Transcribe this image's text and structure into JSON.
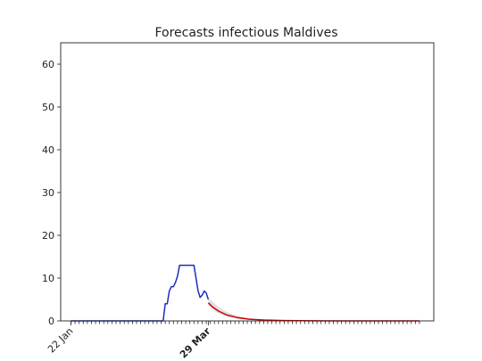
{
  "chart_data": {
    "type": "line",
    "title": "Forecasts infectious Maldives",
    "xlabel": "",
    "ylabel": "",
    "ylim": [
      0,
      65
    ],
    "yticks": [
      0,
      10,
      20,
      30,
      40,
      50,
      60
    ],
    "x_range": [
      "2020-01-17",
      "2020-07-17"
    ],
    "xtick_labels": [
      {
        "date": "2020-01-22",
        "label": "22 Jan",
        "bold": false
      },
      {
        "date": "2020-03-29",
        "label": "29 Mar",
        "bold": true
      }
    ],
    "minor_ticks": {
      "start": "2020-01-22",
      "end": "2020-07-10",
      "every_days": 2
    },
    "grid": false,
    "legend": "none",
    "colors": {
      "observed": "#1c2dc0",
      "forecast": "#d40000",
      "band": "#d9d9d9"
    },
    "series": [
      {
        "role": "observed",
        "points": [
          [
            "2020-01-22",
            0
          ],
          [
            "2020-03-07",
            0
          ],
          [
            "2020-03-08",
            4
          ],
          [
            "2020-03-09",
            4
          ],
          [
            "2020-03-10",
            7
          ],
          [
            "2020-03-11",
            8
          ],
          [
            "2020-03-12",
            8
          ],
          [
            "2020-03-13",
            9
          ],
          [
            "2020-03-14",
            10.5
          ],
          [
            "2020-03-15",
            13
          ],
          [
            "2020-03-16",
            13
          ],
          [
            "2020-03-17",
            13
          ],
          [
            "2020-03-18",
            13
          ],
          [
            "2020-03-19",
            13
          ],
          [
            "2020-03-20",
            13
          ],
          [
            "2020-03-21",
            13
          ],
          [
            "2020-03-22",
            13
          ],
          [
            "2020-03-23",
            10
          ],
          [
            "2020-03-24",
            7
          ],
          [
            "2020-03-25",
            5.5
          ],
          [
            "2020-03-26",
            6
          ],
          [
            "2020-03-27",
            7
          ],
          [
            "2020-03-28",
            6.5
          ],
          [
            "2020-03-29",
            5
          ]
        ]
      },
      {
        "role": "forecast",
        "points": [
          [
            "2020-03-29",
            4.2
          ],
          [
            "2020-03-31",
            3.3
          ],
          [
            "2020-04-03",
            2.3
          ],
          [
            "2020-04-07",
            1.4
          ],
          [
            "2020-04-12",
            0.8
          ],
          [
            "2020-04-18",
            0.4
          ],
          [
            "2020-04-25",
            0.2
          ],
          [
            "2020-05-05",
            0.08
          ],
          [
            "2020-05-20",
            0.02
          ],
          [
            "2020-06-10",
            0.0
          ],
          [
            "2020-07-10",
            0.0
          ]
        ]
      }
    ],
    "band": {
      "upper": [
        [
          "2020-03-29",
          5.2
        ],
        [
          "2020-03-31",
          4.6
        ],
        [
          "2020-04-03",
          3.3
        ],
        [
          "2020-04-07",
          2.1
        ],
        [
          "2020-04-12",
          1.2
        ],
        [
          "2020-04-18",
          0.6
        ],
        [
          "2020-04-25",
          0.3
        ],
        [
          "2020-05-05",
          0.1
        ],
        [
          "2020-05-20",
          0.03
        ],
        [
          "2020-06-10",
          0.0
        ],
        [
          "2020-07-10",
          0.0
        ]
      ],
      "lower": [
        [
          "2020-03-29",
          3.6
        ],
        [
          "2020-03-31",
          2.6
        ],
        [
          "2020-04-03",
          1.7
        ],
        [
          "2020-04-07",
          1.0
        ],
        [
          "2020-04-12",
          0.5
        ],
        [
          "2020-04-18",
          0.25
        ],
        [
          "2020-04-25",
          0.1
        ],
        [
          "2020-05-05",
          0.04
        ],
        [
          "2020-05-20",
          0.0
        ],
        [
          "2020-06-10",
          0.0
        ],
        [
          "2020-07-10",
          0.0
        ]
      ]
    }
  }
}
